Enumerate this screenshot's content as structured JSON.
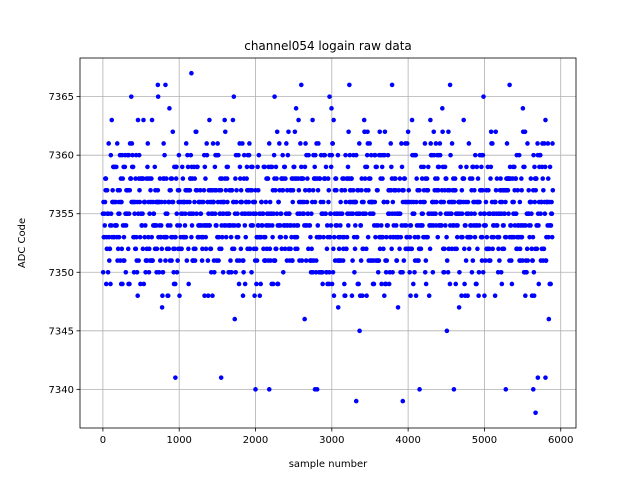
{
  "chart_data": {
    "type": "scatter",
    "title": "channel054 logain raw data",
    "xlabel": "sample number",
    "ylabel": "ADC Code",
    "xlim": [
      -300,
      6200
    ],
    "ylim": [
      7336.7,
      7368.3
    ],
    "xticks": [
      0,
      1000,
      2000,
      3000,
      4000,
      5000,
      6000
    ],
    "yticks": [
      7340,
      7345,
      7350,
      7355,
      7360,
      7365
    ],
    "grid": true,
    "legend": "none",
    "marker_color": "#0000ff",
    "sample_count": 5900,
    "distribution": {
      "center": 7355,
      "dense_min": 7348,
      "dense_max": 7362,
      "min_value": 7338,
      "max_value": 7367
    },
    "highlighted_points": [
      {
        "x": 1160,
        "y": 7367
      },
      {
        "x": 720,
        "y": 7366
      },
      {
        "x": 820,
        "y": 7366
      },
      {
        "x": 2600,
        "y": 7366
      },
      {
        "x": 3230,
        "y": 7366
      },
      {
        "x": 3790,
        "y": 7366
      },
      {
        "x": 4550,
        "y": 7366
      },
      {
        "x": 5330,
        "y": 7366
      },
      {
        "x": 2250,
        "y": 7365
      },
      {
        "x": 2970,
        "y": 7365
      },
      {
        "x": 3320,
        "y": 7339
      },
      {
        "x": 3930,
        "y": 7339
      },
      {
        "x": 5670,
        "y": 7338
      },
      {
        "x": 2000,
        "y": 7340
      },
      {
        "x": 2180,
        "y": 7340
      },
      {
        "x": 2780,
        "y": 7340
      },
      {
        "x": 4150,
        "y": 7340
      },
      {
        "x": 4600,
        "y": 7340
      },
      {
        "x": 5280,
        "y": 7340
      },
      {
        "x": 5640,
        "y": 7340
      },
      {
        "x": 950,
        "y": 7341
      },
      {
        "x": 1550,
        "y": 7341
      },
      {
        "x": 5700,
        "y": 7341
      },
      {
        "x": 5800,
        "y": 7341
      }
    ]
  }
}
